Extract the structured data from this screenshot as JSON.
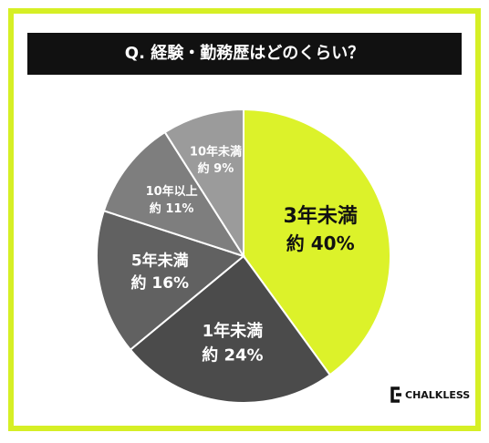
{
  "chart_data": {
    "type": "pie",
    "title": "Q. 経験・勤務歴はどのくらい？",
    "categories": [
      "3年未満",
      "1年未満",
      "5年未満",
      "10年以上",
      "10年未満"
    ],
    "values": [
      40,
      24,
      16,
      11,
      9
    ],
    "value_labels": [
      "約 40%",
      "約 24%",
      "約 16%",
      "約 11%",
      "約 9%"
    ],
    "colors": [
      "#dcf22a",
      "#4b4b4b",
      "#616161",
      "#7e7e7e",
      "#9b9b9b"
    ]
  },
  "logo": "CHALKLESS"
}
